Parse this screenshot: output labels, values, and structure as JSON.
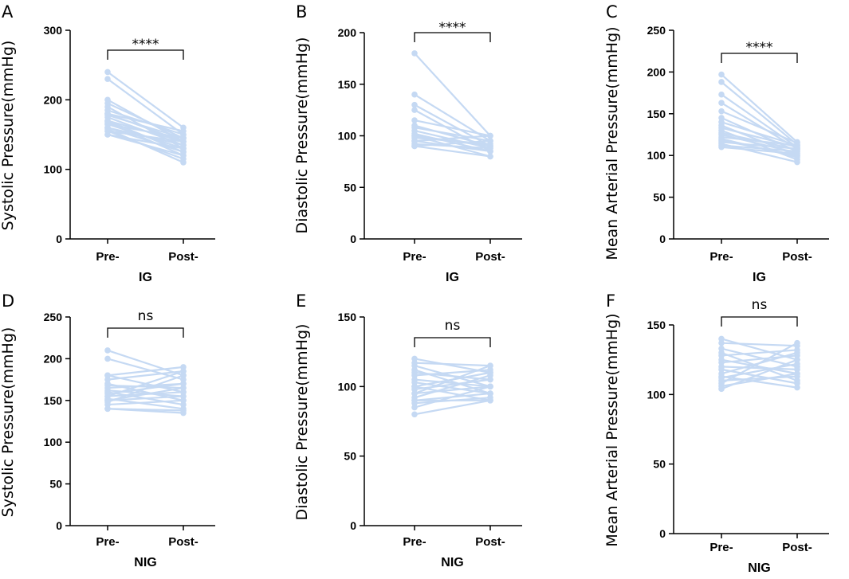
{
  "chart_data": [
    {
      "panel": "A",
      "type": "line",
      "categories": [
        "Pre-",
        "Post-"
      ],
      "xlabel": "IG",
      "ylabel": "Systolic Pressure(mmHg)",
      "ylim": [
        0,
        300
      ],
      "yticks": [
        0,
        100,
        200,
        300
      ],
      "significance": "****",
      "color": "#c5d9f3",
      "pairs": [
        [
          240,
          160
        ],
        [
          230,
          150
        ],
        [
          200,
          140
        ],
        [
          195,
          145
        ],
        [
          190,
          130
        ],
        [
          185,
          150
        ],
        [
          180,
          155
        ],
        [
          180,
          140
        ],
        [
          178,
          145
        ],
        [
          175,
          135
        ],
        [
          170,
          140
        ],
        [
          170,
          125
        ],
        [
          168,
          120
        ],
        [
          165,
          130
        ],
        [
          165,
          145
        ],
        [
          160,
          135
        ],
        [
          160,
          125
        ],
        [
          158,
          110
        ],
        [
          155,
          115
        ],
        [
          155,
          140
        ],
        [
          150,
          130
        ],
        [
          150,
          120
        ]
      ]
    },
    {
      "panel": "B",
      "type": "line",
      "categories": [
        "Pre-",
        "Post-"
      ],
      "xlabel": "IG",
      "ylabel": "Diastolic Pressure(mmHg)",
      "ylim": [
        0,
        200
      ],
      "yticks": [
        0,
        50,
        100,
        150,
        200
      ],
      "significance": "****",
      "color": "#c5d9f3",
      "pairs": [
        [
          180,
          100
        ],
        [
          140,
          95
        ],
        [
          130,
          90
        ],
        [
          125,
          85
        ],
        [
          115,
          100
        ],
        [
          110,
          90
        ],
        [
          108,
          95
        ],
        [
          105,
          88
        ],
        [
          102,
          85
        ],
        [
          100,
          90
        ],
        [
          100,
          80
        ],
        [
          98,
          92
        ],
        [
          95,
          85
        ],
        [
          95,
          100
        ],
        [
          92,
          88
        ],
        [
          90,
          80
        ],
        [
          90,
          95
        ]
      ]
    },
    {
      "panel": "C",
      "type": "line",
      "categories": [
        "Pre-",
        "Post-"
      ],
      "xlabel": "IG",
      "ylabel": "Mean Arterial Pressure(mmHg)",
      "ylim": [
        0,
        250
      ],
      "yticks": [
        0,
        50,
        100,
        150,
        200,
        250
      ],
      "significance": "****",
      "color": "#c5d9f3",
      "pairs": [
        [
          197,
          116
        ],
        [
          188,
          113
        ],
        [
          173,
          110
        ],
        [
          163,
          108
        ],
        [
          153,
          115
        ],
        [
          145,
          105
        ],
        [
          140,
          112
        ],
        [
          136,
          100
        ],
        [
          133,
          110
        ],
        [
          130,
          95
        ],
        [
          127,
          107
        ],
        [
          125,
          103
        ],
        [
          122,
          112
        ],
        [
          120,
          98
        ],
        [
          118,
          100
        ],
        [
          116,
          108
        ],
        [
          114,
          92
        ],
        [
          112,
          105
        ],
        [
          110,
          102
        ]
      ]
    },
    {
      "panel": "D",
      "type": "line",
      "categories": [
        "Pre-",
        "Post-"
      ],
      "xlabel": "NIG",
      "ylabel": "Systolic Pressure(mmHg)",
      "ylim": [
        0,
        250
      ],
      "yticks": [
        0,
        50,
        100,
        150,
        200,
        250
      ],
      "significance": "ns",
      "color": "#c5d9f3",
      "pairs": [
        [
          210,
          180
        ],
        [
          200,
          175
        ],
        [
          180,
          190
        ],
        [
          180,
          160
        ],
        [
          175,
          185
        ],
        [
          170,
          150
        ],
        [
          168,
          165
        ],
        [
          165,
          170
        ],
        [
          162,
          155
        ],
        [
          160,
          145
        ],
        [
          158,
          170
        ],
        [
          155,
          160
        ],
        [
          155,
          185
        ],
        [
          152,
          140
        ],
        [
          150,
          155
        ],
        [
          150,
          165
        ],
        [
          148,
          180
        ],
        [
          145,
          150
        ],
        [
          140,
          135
        ],
        [
          140,
          138
        ]
      ]
    },
    {
      "panel": "E",
      "type": "line",
      "categories": [
        "Pre-",
        "Post-"
      ],
      "xlabel": "NIG",
      "ylabel": "Diastolic Pressure(mmHg)",
      "ylim": [
        0,
        150
      ],
      "yticks": [
        0,
        50,
        100,
        150
      ],
      "significance": "ns",
      "color": "#c5d9f3",
      "pairs": [
        [
          120,
          110
        ],
        [
          117,
          115
        ],
        [
          115,
          100
        ],
        [
          112,
          95
        ],
        [
          110,
          105
        ],
        [
          108,
          112
        ],
        [
          105,
          100
        ],
        [
          103,
          95
        ],
        [
          100,
          110
        ],
        [
          100,
          90
        ],
        [
          98,
          105
        ],
        [
          95,
          100
        ],
        [
          95,
          115
        ],
        [
          92,
          108
        ],
        [
          90,
          95
        ],
        [
          90,
          90
        ],
        [
          88,
          92
        ],
        [
          85,
          100
        ],
        [
          80,
          90
        ]
      ]
    },
    {
      "panel": "F",
      "type": "line",
      "categories": [
        "Pre-",
        "Post-"
      ],
      "xlabel": "NIG",
      "ylabel": "Mean Arterial Pressure(mmHg)",
      "ylim": [
        0,
        150
      ],
      "yticks": [
        0,
        50,
        100,
        150
      ],
      "significance": "ns",
      "color": "#c5d9f3",
      "pairs": [
        [
          140,
          125
        ],
        [
          137,
          135
        ],
        [
          133,
          120
        ],
        [
          130,
          110
        ],
        [
          128,
          132
        ],
        [
          125,
          115
        ],
        [
          123,
          128
        ],
        [
          120,
          118
        ],
        [
          118,
          108
        ],
        [
          115,
          130
        ],
        [
          113,
          105
        ],
        [
          112,
          122
        ],
        [
          110,
          113
        ],
        [
          108,
          137
        ],
        [
          106,
          115
        ],
        [
          104,
          125
        ]
      ]
    }
  ]
}
